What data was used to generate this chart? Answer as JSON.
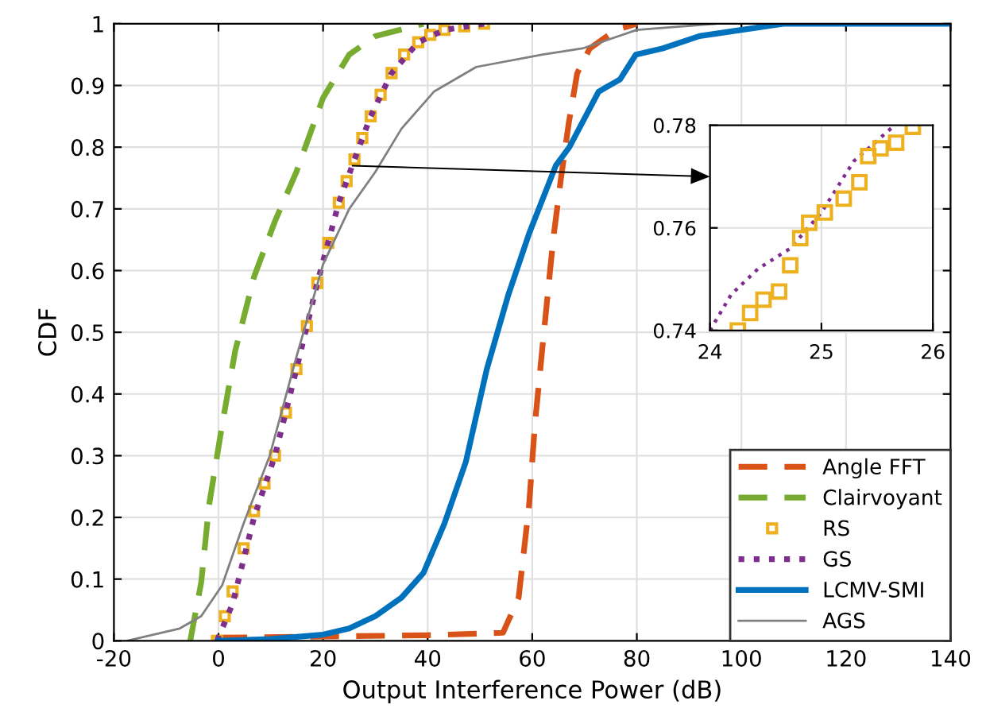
{
  "chart_data": [
    {
      "type": "line",
      "xlabel": "Output Interference Power (dB)",
      "ylabel": "CDF",
      "xlim": [
        -20,
        140
      ],
      "ylim": [
        0,
        1
      ],
      "xticks": [
        -20,
        0,
        20,
        40,
        60,
        80,
        100,
        120,
        140
      ],
      "yticks": [
        0,
        0.1,
        0.2,
        0.3,
        0.4,
        0.5,
        0.6,
        0.7,
        0.8,
        0.9,
        1
      ],
      "grid": true,
      "legend": "bottom right",
      "series": [
        {
          "name": "Angle FFT",
          "color": "#d95319",
          "line_style": "dashed",
          "x": [
            0,
            20,
            40,
            54.4,
            57.4,
            59.4,
            60.5,
            62,
            64,
            65.5,
            67,
            68.6,
            71,
            76,
            80
          ],
          "values": [
            0.005,
            0.007,
            0.009,
            0.013,
            0.07,
            0.22,
            0.35,
            0.48,
            0.65,
            0.75,
            0.84,
            0.92,
            0.96,
            0.99,
            1.0
          ]
        },
        {
          "name": "Clairvoyant",
          "color": "#77ac30",
          "line_style": "dashed",
          "x": [
            -5.4,
            -3.3,
            -1.8,
            0.7,
            3.2,
            6.8,
            10.8,
            14.9,
            20,
            25,
            30,
            39.2
          ],
          "values": [
            0,
            0.095,
            0.22,
            0.35,
            0.47,
            0.59,
            0.68,
            0.76,
            0.88,
            0.95,
            0.98,
            1.0
          ]
        },
        {
          "name": "RS",
          "type": "scatter",
          "marker": "square",
          "color": "#edb120",
          "x": [
            -0.3,
            1.2,
            2.7,
            4.8,
            6.8,
            8.8,
            10.8,
            12.9,
            14.9,
            16.9,
            18.9,
            21,
            23,
            24.5,
            26,
            27.5,
            29.1,
            31,
            33.1,
            35.5,
            38.2,
            40.5,
            43.2,
            47,
            50.8
          ],
          "values": [
            0,
            0.04,
            0.08,
            0.15,
            0.21,
            0.255,
            0.3,
            0.37,
            0.44,
            0.51,
            0.58,
            0.645,
            0.71,
            0.745,
            0.78,
            0.815,
            0.85,
            0.885,
            0.92,
            0.95,
            0.97,
            0.982,
            0.99,
            0.996,
            1.0
          ]
        },
        {
          "name": "GS",
          "color": "#7e2f8e",
          "line_style": "dotted",
          "x": [
            -0.3,
            2.7,
            6.8,
            10.8,
            14.9,
            18.9,
            23,
            26,
            29.1,
            33.1,
            38.2,
            43.2,
            50.8
          ],
          "values": [
            0,
            0.06,
            0.2,
            0.3,
            0.44,
            0.58,
            0.71,
            0.78,
            0.85,
            0.92,
            0.97,
            0.99,
            1.0
          ]
        },
        {
          "name": "LCMV-SMI",
          "color": "#0072bd",
          "line_style": "solid",
          "x": [
            0,
            10,
            20,
            25,
            30,
            35,
            39.2,
            43.2,
            47.3,
            51.3,
            55.4,
            59.4,
            64.5,
            67.1,
            72.7,
            76.8,
            79.8,
            84.9,
            92,
            100,
            108,
            140
          ],
          "values": [
            0,
            0.003,
            0.01,
            0.02,
            0.04,
            0.07,
            0.11,
            0.19,
            0.29,
            0.44,
            0.56,
            0.66,
            0.77,
            0.8,
            0.89,
            0.91,
            0.95,
            0.96,
            0.98,
            0.99,
            1.0,
            1.0
          ]
        },
        {
          "name": "AGS",
          "color": "#808080",
          "line_style": "solid",
          "x": [
            -17.5,
            -7.4,
            -3.3,
            0.7,
            4.8,
            9.8,
            14.9,
            20,
            25,
            30,
            35,
            41.2,
            49.3,
            62,
            69.6,
            80,
            95
          ],
          "values": [
            0,
            0.02,
            0.04,
            0.09,
            0.19,
            0.3,
            0.46,
            0.61,
            0.7,
            0.76,
            0.83,
            0.89,
            0.93,
            0.95,
            0.96,
            0.99,
            1.0
          ]
        }
      ]
    },
    {
      "type": "line",
      "xlim": [
        24,
        26
      ],
      "ylim": [
        0.74,
        0.78
      ],
      "xticks": [
        24,
        25,
        26
      ],
      "yticks": [
        0.74,
        0.76,
        0.78
      ],
      "grid": true,
      "series": [
        {
          "color": "#7e2f8e",
          "line_style": "dotted",
          "x": [
            24,
            24.19,
            24.43,
            24.72,
            25.0,
            25.29,
            25.63
          ],
          "values": [
            0.74,
            0.747,
            0.752,
            0.756,
            0.763,
            0.773,
            0.7795
          ]
        },
        {
          "type": "scatter",
          "marker": "square",
          "color": "#edb120",
          "x": [
            24.25,
            24.36,
            24.48,
            24.62,
            24.72,
            24.81,
            24.89,
            25.03,
            25.2,
            25.34,
            25.42,
            25.53,
            25.67,
            25.82
          ],
          "values": [
            0.74,
            0.7434,
            0.746,
            0.7476,
            0.7527,
            0.758,
            0.761,
            0.763,
            0.7657,
            0.7689,
            0.774,
            0.7755,
            0.7766,
            0.7797
          ]
        }
      ]
    }
  ]
}
